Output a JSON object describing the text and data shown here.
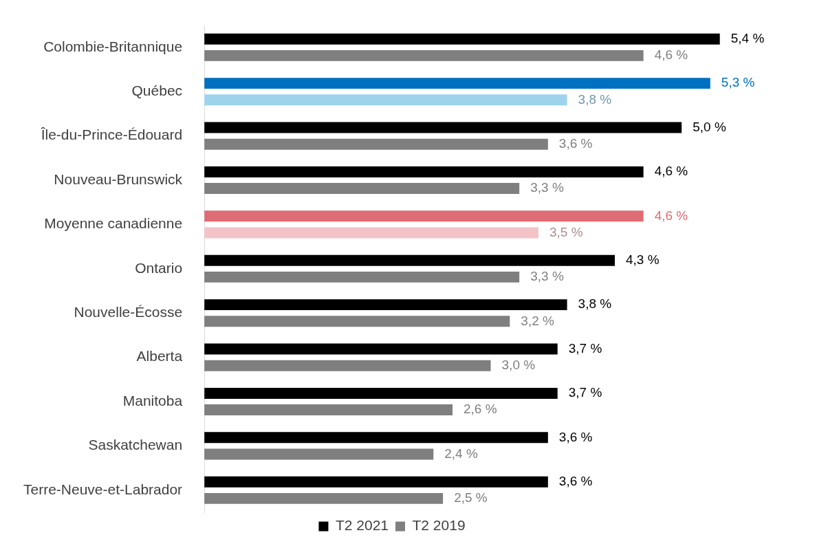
{
  "chart_data": {
    "type": "bar",
    "orientation": "horizontal",
    "categories": [
      "Colombie-Britannique",
      "Québec",
      "Île-du-Prince-Édouard",
      "Nouveau-Brunswick",
      "Moyenne canadienne",
      "Ontario",
      "Nouvelle-Écosse",
      "Alberta",
      "Manitoba",
      "Saskatchewan",
      "Terre-Neuve-et-Labrador"
    ],
    "series": [
      {
        "name": "T2 2021",
        "color": "#000000",
        "colors": [
          "#000000",
          "#0070c0",
          "#000000",
          "#000000",
          "#e06c75",
          "#000000",
          "#000000",
          "#000000",
          "#000000",
          "#000000",
          "#000000"
        ],
        "values": [
          5.4,
          5.3,
          5.0,
          4.6,
          4.6,
          4.3,
          3.8,
          3.7,
          3.7,
          3.6,
          3.6
        ],
        "value_labels": [
          "5,4 %",
          "5,3 %",
          "5,0 %",
          "4,6 %",
          "4,6 %",
          "4,3 %",
          "3,8 %",
          "3,7 %",
          "3,7 %",
          "3,6 %",
          "3,6 %"
        ]
      },
      {
        "name": "T2 2019",
        "color": "#7f7f7f",
        "colors": [
          "#7f7f7f",
          "#9dd3ec",
          "#7f7f7f",
          "#7f7f7f",
          "#f2c4c8",
          "#7f7f7f",
          "#7f7f7f",
          "#7f7f7f",
          "#7f7f7f",
          "#7f7f7f",
          "#7f7f7f"
        ],
        "values": [
          4.6,
          3.8,
          3.6,
          3.3,
          3.5,
          3.3,
          3.2,
          3.0,
          2.6,
          2.4,
          2.5
        ],
        "value_labels": [
          "4,6 %",
          "3,8 %",
          "3,6 %",
          "3,3 %",
          "3,5 %",
          "3,3 %",
          "3,2 %",
          "3,0 %",
          "2,6 %",
          "2,4 %",
          "2,5 %"
        ]
      }
    ],
    "legend": "bottom"
  }
}
